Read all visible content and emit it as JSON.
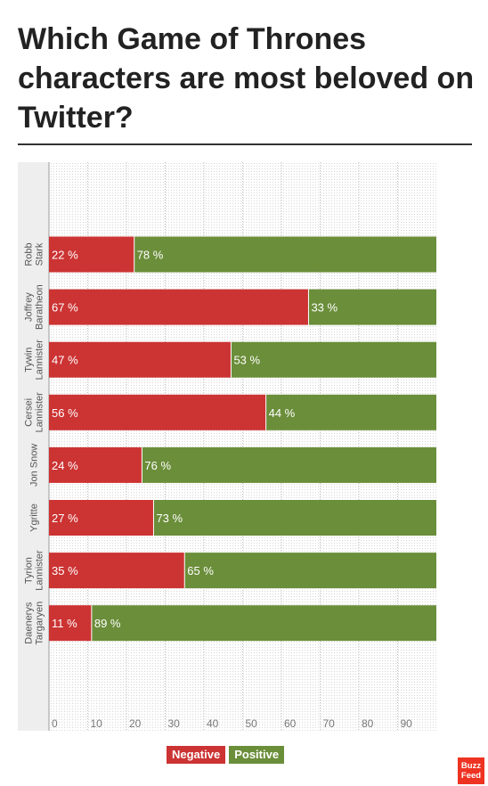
{
  "title": "Which Game of Thrones characters are most beloved on Twitter?",
  "chart_data": {
    "type": "bar",
    "orientation": "horizontal",
    "stacked": true,
    "categories": [
      [
        "Robb",
        "Stark"
      ],
      [
        "Joffrey",
        "Baratheon"
      ],
      [
        "Tywin",
        "Lannister"
      ],
      [
        "Cersei",
        "Lannister"
      ],
      [
        "Jon Snow"
      ],
      [
        "Ygritte"
      ],
      [
        "Tyrion",
        "Lannister"
      ],
      [
        "Daenerys",
        "Targaryen"
      ]
    ],
    "series": [
      {
        "name": "Negative",
        "color": "#cc3333",
        "values": [
          22,
          67,
          47,
          56,
          24,
          27,
          35,
          11
        ]
      },
      {
        "name": "Positive",
        "color": "#6b8e3a",
        "values": [
          78,
          33,
          53,
          44,
          76,
          73,
          65,
          89
        ]
      }
    ],
    "value_suffix": " %",
    "x_ticks": [
      0,
      10,
      20,
      30,
      40,
      50,
      60,
      70,
      80,
      90
    ],
    "xlim": [
      0,
      100
    ],
    "grid": true,
    "legend_position": "bottom-center"
  },
  "legend": {
    "negative": "Negative",
    "positive": "Positive"
  },
  "logo": {
    "line1": "Buzz",
    "line2": "Feed"
  }
}
